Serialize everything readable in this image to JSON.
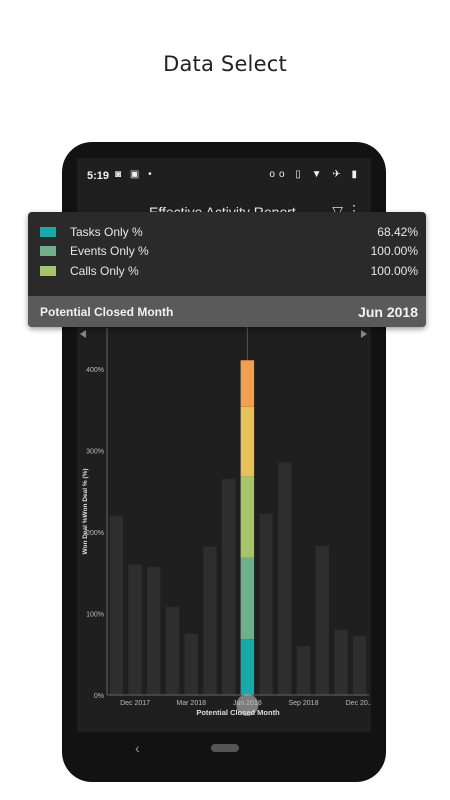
{
  "caption": "Data Select",
  "status_bar": {
    "time": "5:19",
    "left_icons": [
      "app-icon",
      "notification-icon",
      "dot-icon"
    ],
    "right_icons": [
      "voicemail-icon",
      "vibrate-icon",
      "wifi-icon",
      "airplane-icon",
      "battery-icon"
    ]
  },
  "app_bar": {
    "title": "Effective Activity Report",
    "back_icon": "back-arrow-icon",
    "filter_icon": "filter-icon",
    "more_icon": "more-vert-icon"
  },
  "tooltip": {
    "rows": [
      {
        "label": "Tasks Only %",
        "value": "68.42%",
        "color": "#1aa8a8"
      },
      {
        "label": "Events Only %",
        "value": "100.00%",
        "color": "#6db08a"
      },
      {
        "label": "Calls Only %",
        "value": "100.00%",
        "color": "#a7c46a"
      }
    ],
    "footer_label": "Potential Closed Month",
    "footer_value": "Jun 2018"
  },
  "chart_data": {
    "type": "bar",
    "xlabel": "Potential Closed Month",
    "ylabel": "Won Deal %Won Deal % (%)",
    "ylim": [
      0,
      450
    ],
    "y_ticks": [
      "0%",
      "100%",
      "200%",
      "300%",
      "400%"
    ],
    "x_tick_labels": [
      "Dec 2017",
      "Mar 2018",
      "Jun 2018",
      "Sep 2018",
      "Dec 20..."
    ],
    "background_bars": [
      220,
      160,
      157,
      108,
      75,
      182,
      265,
      410,
      222,
      285,
      60,
      183,
      80,
      72
    ],
    "selected_index": 7,
    "selected_stack": [
      {
        "name": "Tasks Only %",
        "value": 68.42,
        "color": "#1aa8a8"
      },
      {
        "name": "Events Only %",
        "value": 100,
        "color": "#6db08a"
      },
      {
        "name": "Calls Only %",
        "value": 100,
        "color": "#a7c46a"
      },
      {
        "name": "",
        "value": 85,
        "color": "#e8c05a"
      },
      {
        "name": "",
        "value": 57,
        "color": "#f0a050"
      }
    ],
    "background_bar_color": "#2e2e2e",
    "axis_color": "#666666",
    "grid": false
  },
  "colors": {
    "background": "#1f1f1f",
    "phone_frame": "#121212",
    "tooltip_bg": "#2a2a2a",
    "tooltip_footer_bg": "#5a5a5a"
  }
}
